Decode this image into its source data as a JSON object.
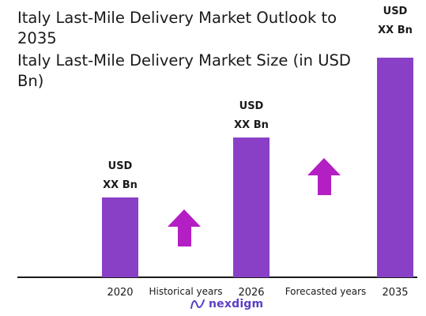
{
  "title": "Italy Last-Mile Delivery Market Outlook to 2035",
  "subtitle": "Italy Last-Mile Delivery Market Size (in USD Bn)",
  "colors": {
    "bar": "#8a3fc7",
    "arrow": "#b41fc4",
    "axis": "#1a1a1a"
  },
  "periods": {
    "historical": "Historical years",
    "forecast": "Forecasted years"
  },
  "logo": {
    "text": "nexdigm"
  },
  "chart_data": {
    "type": "bar",
    "title": "Italy Last-Mile Delivery Market Size (in USD Bn)",
    "categories": [
      "2020",
      "2026",
      "2035"
    ],
    "values": [
      1,
      1.75,
      2.75
    ],
    "value_labels": [
      [
        "USD",
        "XX Bn"
      ],
      [
        "USD",
        "XX Bn"
      ],
      [
        "USD",
        "XX Bn"
      ]
    ],
    "ylim": [
      0,
      2.75
    ],
    "grid": false,
    "legend": "none"
  }
}
